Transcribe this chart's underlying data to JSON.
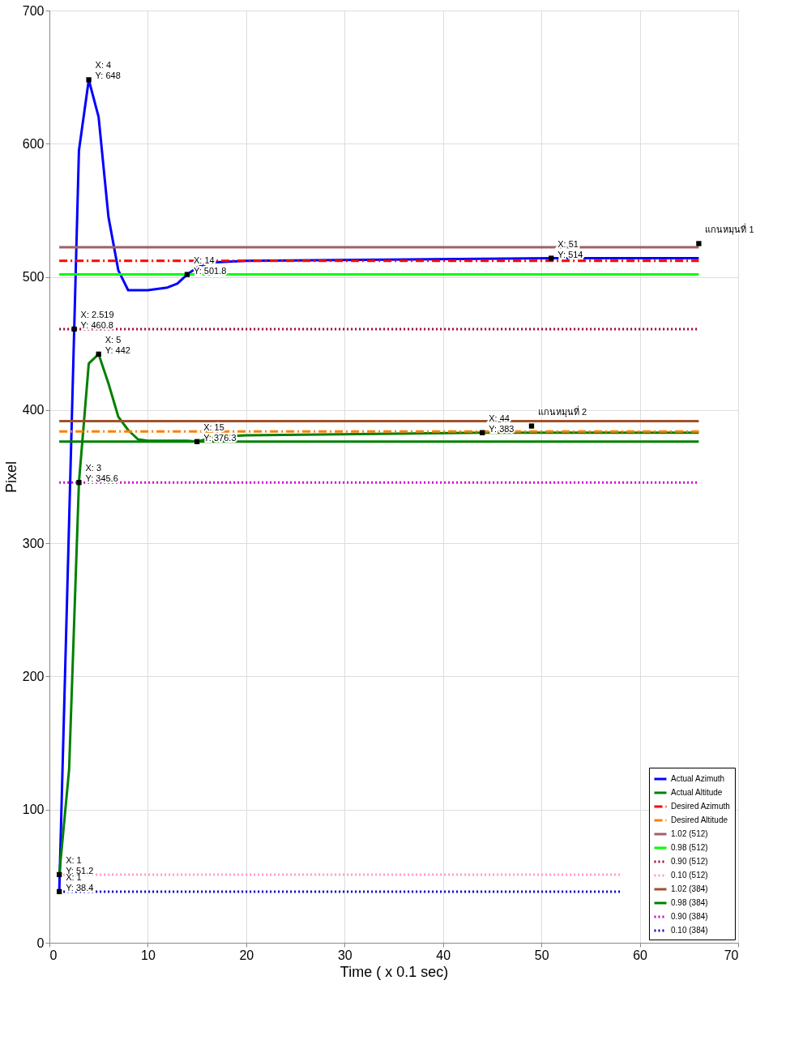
{
  "chart_data": {
    "type": "line",
    "xlabel": "Time ( x 0.1 sec)",
    "ylabel": "Pixel",
    "xlim": [
      0,
      70
    ],
    "ylim": [
      0,
      700
    ],
    "xticks": [
      0,
      10,
      20,
      30,
      40,
      50,
      60,
      70
    ],
    "yticks": [
      0,
      100,
      200,
      300,
      400,
      500,
      600,
      700
    ],
    "grid": true,
    "legend": "bottom right",
    "series": [
      {
        "name": "Actual Azimuth",
        "color": "#0000ff",
        "line_style": "solid",
        "x": [
          1,
          2,
          2.519,
          3,
          4,
          5,
          6,
          7,
          8,
          10,
          12,
          13,
          14,
          15,
          16,
          17,
          20,
          51,
          66
        ],
        "values": [
          38.4,
          316,
          460.8,
          595,
          648,
          620,
          545,
          505,
          490,
          490,
          492,
          495,
          501.8,
          507,
          510,
          511,
          512,
          514,
          514
        ]
      },
      {
        "name": "Actual Altitude",
        "color": "#008000",
        "line_style": "solid",
        "x": [
          1,
          2,
          3,
          4,
          5,
          6,
          7,
          8,
          9,
          10,
          14,
          15,
          17,
          20,
          44,
          66
        ],
        "values": [
          51.2,
          130,
          345.6,
          435,
          442,
          420,
          395,
          385,
          378,
          377,
          377,
          376.3,
          380,
          381,
          383,
          383
        ]
      },
      {
        "name": "Desired Azimuth",
        "color": "#ff0000",
        "line_style": "dashed",
        "x": [
          1,
          66
        ],
        "values": [
          512,
          512
        ]
      },
      {
        "name": "Desired Altitude",
        "color": "#ff8000",
        "line_style": "dashed",
        "x": [
          1,
          66
        ],
        "values": [
          384,
          384
        ]
      },
      {
        "name": "1.02 (512)",
        "color": "#a0606a",
        "line_style": "solid",
        "x": [
          1,
          66
        ],
        "values": [
          522.2,
          522.2
        ]
      },
      {
        "name": "0.98 (512)",
        "color": "#00ff00",
        "line_style": "solid",
        "x": [
          1,
          66
        ],
        "values": [
          501.8,
          501.8
        ]
      },
      {
        "name": "0.90 (512)",
        "color": "#a00030",
        "line_style": "dotted",
        "x": [
          1,
          66
        ],
        "values": [
          460.8,
          460.8
        ]
      },
      {
        "name": "0.10 (512)",
        "color": "#ff99cc",
        "line_style": "dotted",
        "x": [
          1,
          58
        ],
        "values": [
          51.2,
          51.2
        ]
      },
      {
        "name": "1.02 (384)",
        "color": "#a0522d",
        "line_style": "solid",
        "x": [
          1,
          66
        ],
        "values": [
          391.7,
          391.7
        ]
      },
      {
        "name": "0.98 (384)",
        "color": "#008000",
        "line_style": "solid",
        "x": [
          1,
          66
        ],
        "values": [
          376.3,
          376.3
        ]
      },
      {
        "name": "0.90 (384)",
        "color": "#cc00cc",
        "line_style": "dotted",
        "x": [
          1,
          66
        ],
        "values": [
          345.6,
          345.6
        ]
      },
      {
        "name": "0.10 (384)",
        "color": "#0000cc",
        "line_style": "dotted",
        "x": [
          1,
          58
        ],
        "values": [
          38.4,
          38.4
        ]
      }
    ],
    "annotations": [
      {
        "text": "X: 1\nY: 38.4",
        "x": 1,
        "y": 38.4
      },
      {
        "text": "X: 1\nY: 51.2",
        "x": 1,
        "y": 51.2
      },
      {
        "text": "X: 3\nY: 345.6",
        "x": 3,
        "y": 345.6
      },
      {
        "text": "X: 2.519\nY: 460.8",
        "x": 2.519,
        "y": 460.8
      },
      {
        "text": "X: 4\nY: 648",
        "x": 4,
        "y": 648
      },
      {
        "text": "X: 5\nY: 442",
        "x": 5,
        "y": 442
      },
      {
        "text": "X: 14\nY: 501.8",
        "x": 14,
        "y": 501.8
      },
      {
        "text": "X: 15\nY: 376.3",
        "x": 15,
        "y": 376.3
      },
      {
        "text": "X: 44\nY: 383",
        "x": 44,
        "y": 383
      },
      {
        "text": "X: 51\nY: 514",
        "x": 51,
        "y": 514
      },
      {
        "text": "แกนหมุนที่ 1",
        "x": 66,
        "y": 525
      },
      {
        "text": "แกนหมุนที่ 2",
        "x": 49,
        "y": 388
      }
    ]
  }
}
